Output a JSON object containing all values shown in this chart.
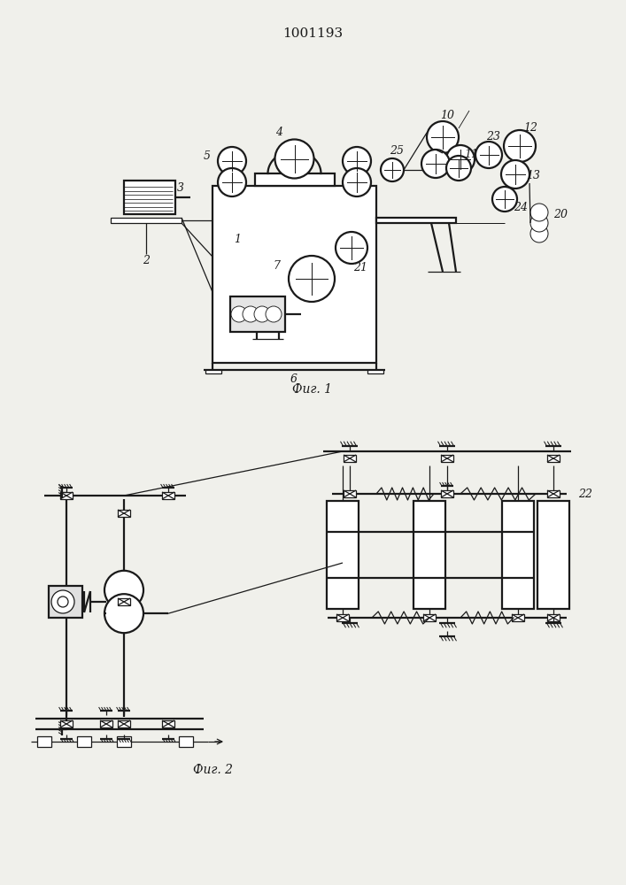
{
  "title": "1001193",
  "fig1_caption": "Фиг. 1",
  "fig2_caption": "Фиг. 2",
  "bg_color": "#f0f0eb",
  "line_color": "#1a1a1a",
  "lw": 0.9,
  "lw_thick": 1.6
}
